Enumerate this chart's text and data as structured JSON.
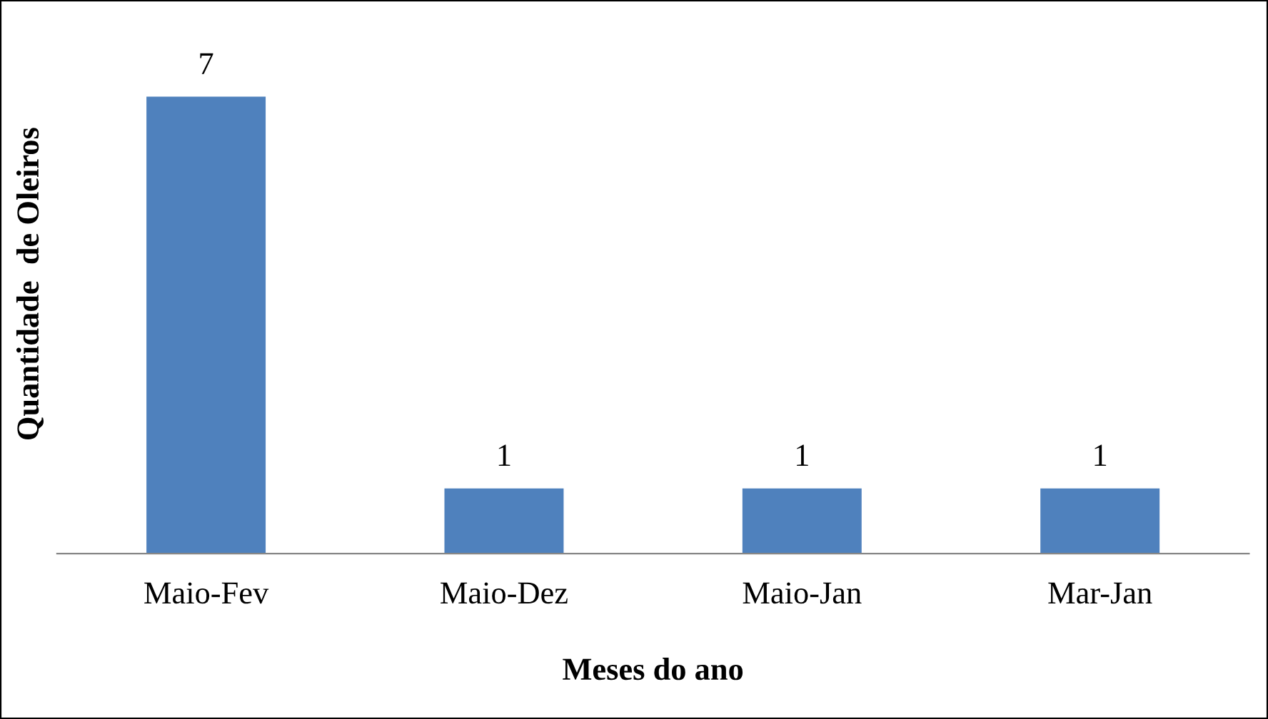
{
  "chart_data": {
    "type": "bar",
    "xlabel": "Meses do ano",
    "ylabel": "Quantidade  de Oleiros",
    "categories": [
      "Maio-Fev",
      "Maio-Dez",
      "Maio-Jan",
      "Mar-Jan"
    ],
    "values": [
      7,
      1,
      1,
      1
    ],
    "color": "#4f81bd",
    "data_labels": true,
    "grid": false,
    "legend": false
  }
}
